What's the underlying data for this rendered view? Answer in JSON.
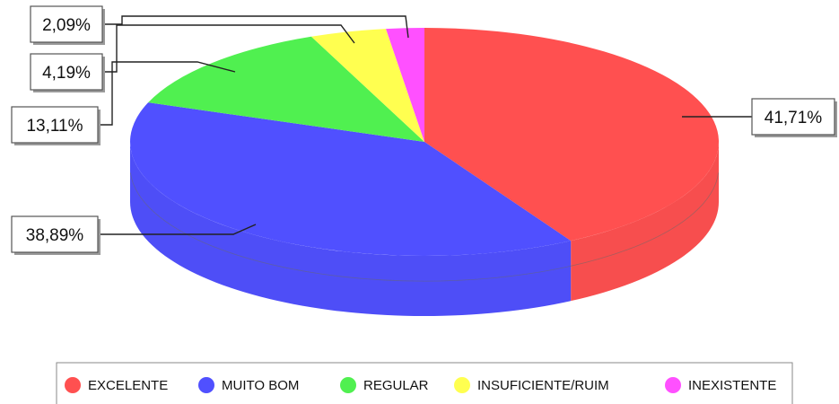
{
  "chart_data": {
    "type": "pie",
    "style": "3d",
    "title": "",
    "slices": [
      {
        "name": "EXCELENTE",
        "value": 41.71,
        "label": "41,71%",
        "color": "#ff5050"
      },
      {
        "name": "MUITO BOM",
        "value": 38.89,
        "label": "38,89%",
        "color": "#5050ff"
      },
      {
        "name": "REGULAR",
        "value": 13.11,
        "label": "13,11%",
        "color": "#50f050"
      },
      {
        "name": "INSUFICIENTE/RUIM",
        "value": 4.19,
        "label": "4,19%",
        "color": "#ffff50"
      },
      {
        "name": "INEXISTENTE",
        "value": 2.09,
        "label": "2,09%",
        "color": "#ff50ff"
      }
    ],
    "legend": {
      "position": "bottom"
    }
  }
}
